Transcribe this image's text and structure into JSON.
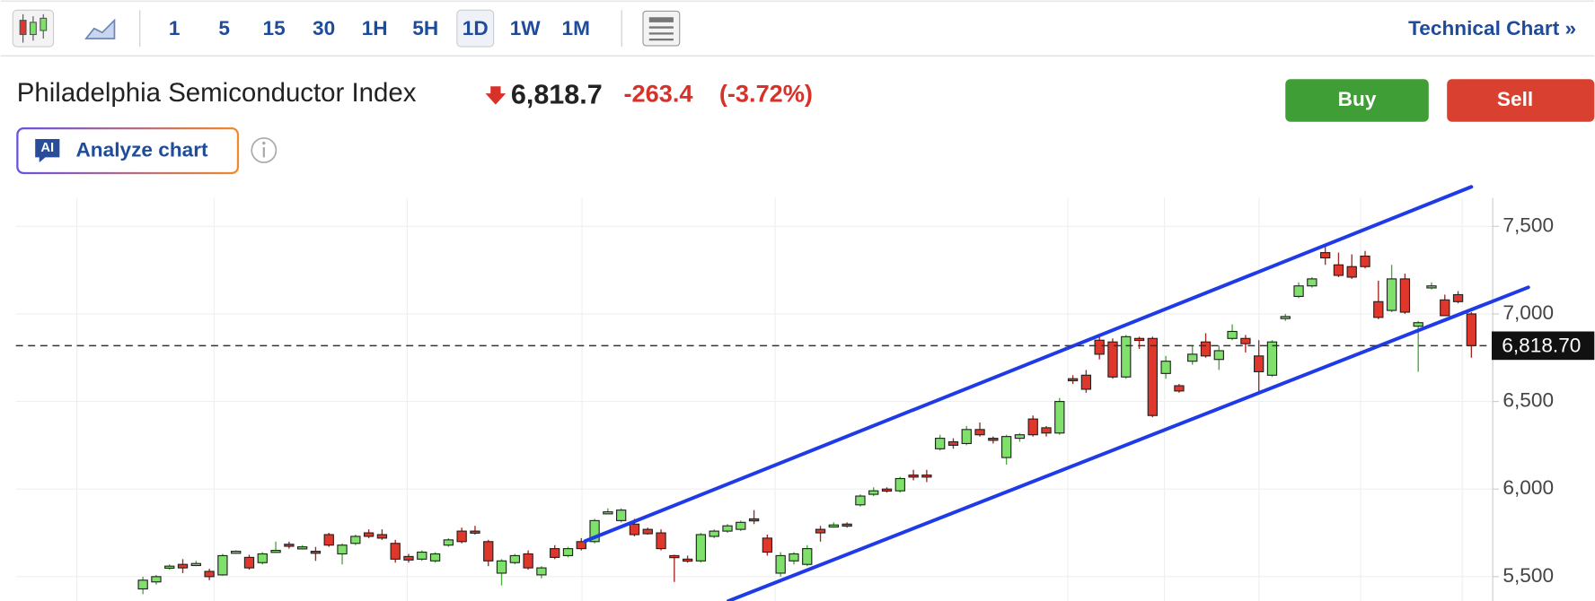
{
  "toolbar": {
    "intervals": [
      "1",
      "5",
      "15",
      "30",
      "1H",
      "5H",
      "1D",
      "1W",
      "1M"
    ],
    "selected_interval": 6,
    "link": "Technical Chart »"
  },
  "header": {
    "title": "Philadelphia Semiconductor Index",
    "price": "6,818.7",
    "change": "-263.4",
    "change_percent": "(-3.72%)"
  },
  "buttons": {
    "buy": "Buy",
    "sell": "Sell",
    "ai_badge": "AI",
    "analyze": "Analyze chart"
  },
  "chart_data": {
    "type": "candlestick",
    "ylim": [
      5361,
      7662
    ],
    "yticks": [
      {
        "value": 5500,
        "label": "5,500"
      },
      {
        "value": 6000,
        "label": "6,000"
      },
      {
        "value": 6500,
        "label": "6,500"
      },
      {
        "value": 7000,
        "label": "7,000"
      },
      {
        "value": 7500,
        "label": "7,500"
      }
    ],
    "grid": true,
    "up_color": "#7fe06b",
    "down_color": "#e0372c",
    "last_price": {
      "value": 6818.7,
      "label": "6,818.70"
    },
    "candles": [
      [
        5430,
        5500,
        5400,
        5480
      ],
      [
        5470,
        5510,
        5455,
        5500
      ],
      [
        5555,
        5570,
        5540,
        5560
      ],
      [
        5570,
        5600,
        5520,
        5550
      ],
      [
        5570,
        5590,
        5560,
        5575
      ],
      [
        5530,
        5545,
        5480,
        5500
      ],
      [
        5510,
        5630,
        5505,
        5620
      ],
      [
        5640,
        5650,
        5630,
        5645
      ],
      [
        5610,
        5625,
        5540,
        5550
      ],
      [
        5580,
        5640,
        5570,
        5630
      ],
      [
        5645,
        5700,
        5640,
        5650
      ],
      [
        5685,
        5700,
        5660,
        5680
      ],
      [
        5665,
        5680,
        5655,
        5670
      ],
      [
        5645,
        5670,
        5590,
        5640
      ],
      [
        5740,
        5750,
        5670,
        5680
      ],
      [
        5630,
        5690,
        5570,
        5680
      ],
      [
        5690,
        5740,
        5680,
        5730
      ],
      [
        5750,
        5770,
        5720,
        5730
      ],
      [
        5740,
        5770,
        5710,
        5720
      ],
      [
        5690,
        5710,
        5580,
        5600
      ],
      [
        5615,
        5630,
        5580,
        5595
      ],
      [
        5600,
        5650,
        5590,
        5640
      ],
      [
        5590,
        5640,
        5580,
        5630
      ],
      [
        5680,
        5720,
        5670,
        5710
      ],
      [
        5760,
        5780,
        5690,
        5700
      ],
      [
        5760,
        5790,
        5740,
        5750
      ],
      [
        5700,
        5710,
        5560,
        5590
      ],
      [
        5520,
        5600,
        5450,
        5590
      ],
      [
        5580,
        5630,
        5570,
        5620
      ],
      [
        5630,
        5650,
        5540,
        5550
      ],
      [
        5510,
        5560,
        5490,
        5550
      ],
      [
        5660,
        5680,
        5600,
        5610
      ],
      [
        5620,
        5670,
        5610,
        5660
      ],
      [
        5700,
        5720,
        5650,
        5660
      ],
      [
        5700,
        5830,
        5690,
        5820
      ],
      [
        5865,
        5890,
        5860,
        5870
      ],
      [
        5820,
        5890,
        5810,
        5880
      ],
      [
        5800,
        5830,
        5730,
        5740
      ],
      [
        5770,
        5780,
        5740,
        5745
      ],
      [
        5750,
        5770,
        5650,
        5660
      ],
      [
        5620,
        5625,
        5470,
        5610
      ],
      [
        5600,
        5620,
        5580,
        5595
      ],
      [
        5590,
        5750,
        5580,
        5740
      ],
      [
        5730,
        5770,
        5720,
        5760
      ],
      [
        5760,
        5800,
        5750,
        5790
      ],
      [
        5770,
        5820,
        5760,
        5810
      ],
      [
        5830,
        5880,
        5800,
        5820
      ],
      [
        5720,
        5740,
        5620,
        5640
      ],
      [
        5520,
        5640,
        5500,
        5620
      ],
      [
        5590,
        5640,
        5570,
        5630
      ],
      [
        5570,
        5680,
        5560,
        5660
      ],
      [
        5770,
        5790,
        5700,
        5750
      ],
      [
        5785,
        5810,
        5780,
        5795
      ],
      [
        5800,
        5810,
        5780,
        5790
      ],
      [
        5910,
        5970,
        5900,
        5960
      ],
      [
        5970,
        6010,
        5960,
        5990
      ],
      [
        6000,
        6010,
        5980,
        5990
      ],
      [
        5990,
        6070,
        5980,
        6060
      ],
      [
        6080,
        6110,
        6050,
        6075
      ],
      [
        6080,
        6110,
        6040,
        6070
      ],
      [
        6230,
        6310,
        6220,
        6290
      ],
      [
        6270,
        6290,
        6230,
        6250
      ],
      [
        6260,
        6360,
        6250,
        6340
      ],
      [
        6340,
        6380,
        6300,
        6310
      ],
      [
        6290,
        6300,
        6260,
        6280
      ],
      [
        6180,
        6310,
        6140,
        6300
      ],
      [
        6290,
        6320,
        6270,
        6310
      ],
      [
        6400,
        6420,
        6300,
        6310
      ],
      [
        6350,
        6360,
        6300,
        6320
      ],
      [
        6320,
        6520,
        6310,
        6500
      ],
      [
        6630,
        6650,
        6600,
        6620
      ],
      [
        6650,
        6680,
        6550,
        6570
      ],
      [
        6850,
        6880,
        6740,
        6770
      ],
      [
        6840,
        6860,
        6630,
        6640
      ],
      [
        6640,
        6880,
        6630,
        6870
      ],
      [
        6860,
        6870,
        6800,
        6850
      ],
      [
        6860,
        6870,
        6410,
        6420
      ],
      [
        6660,
        6760,
        6630,
        6730
      ],
      [
        6590,
        6600,
        6550,
        6560
      ],
      [
        6730,
        6820,
        6710,
        6770
      ],
      [
        6840,
        6890,
        6750,
        6760
      ],
      [
        6740,
        6820,
        6680,
        6790
      ],
      [
        6860,
        6940,
        6850,
        6900
      ],
      [
        6860,
        6880,
        6780,
        6830
      ],
      [
        6760,
        6850,
        6550,
        6670
      ],
      [
        6650,
        6850,
        6640,
        6840
      ],
      [
        6975,
        7000,
        6960,
        6985
      ],
      [
        7100,
        7180,
        7090,
        7160
      ],
      [
        7160,
        7210,
        7150,
        7200
      ],
      [
        7350,
        7400,
        7280,
        7320
      ],
      [
        7280,
        7350,
        7210,
        7220
      ],
      [
        7270,
        7340,
        7200,
        7210
      ],
      [
        7330,
        7360,
        7260,
        7270
      ],
      [
        7070,
        7190,
        6970,
        6980
      ],
      [
        7020,
        7280,
        7010,
        7200
      ],
      [
        7200,
        7230,
        7000,
        7010
      ],
      [
        6930,
        6960,
        6670,
        6950
      ],
      [
        7150,
        7180,
        7140,
        7160
      ],
      [
        7080,
        7110,
        6990,
        6990
      ],
      [
        7110,
        7130,
        7060,
        7070
      ],
      [
        7000,
        7010,
        6750,
        6818.7
      ]
    ]
  }
}
